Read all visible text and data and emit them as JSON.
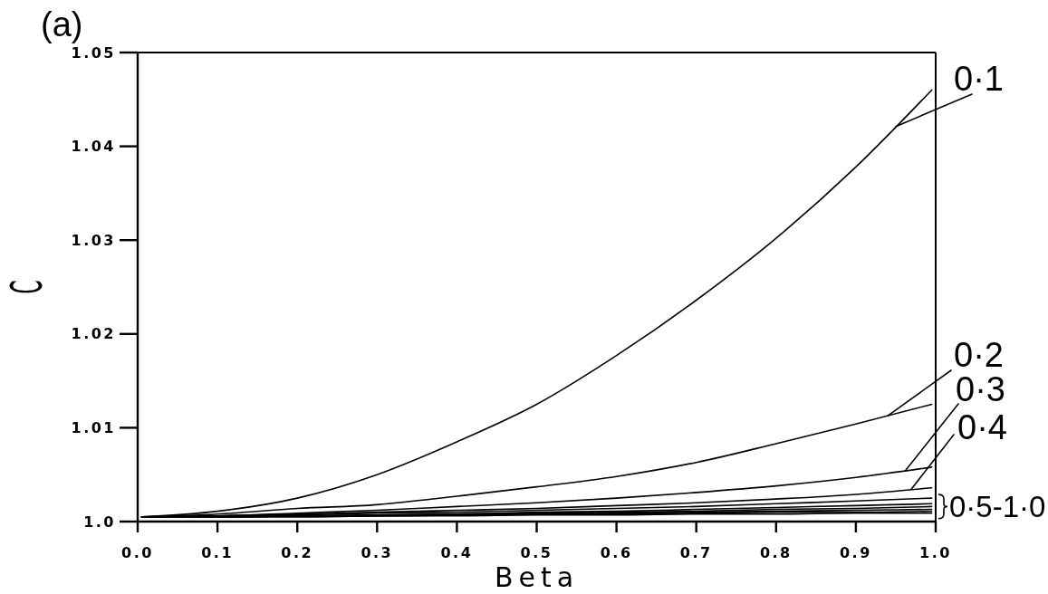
{
  "chart_data": {
    "type": "line",
    "title": "(a)",
    "xlabel": "Beta",
    "ylabel": "C",
    "x": [
      0.005,
      0.1,
      0.2,
      0.3,
      0.4,
      0.5,
      0.6,
      0.7,
      0.8,
      0.9,
      0.995
    ],
    "series": [
      {
        "name": "0·1",
        "color": "#000000",
        "values": [
          1.0005,
          1.0011,
          1.0025,
          1.005,
          1.0085,
          1.0125,
          1.0177,
          1.0236,
          1.0302,
          1.0378,
          1.046
        ]
      },
      {
        "name": "0·2",
        "color": "#000000",
        "values": [
          1.0005,
          1.0008,
          1.0014,
          1.0018,
          1.0027,
          1.0037,
          1.0048,
          1.0063,
          1.0083,
          1.0104,
          1.0125
        ]
      },
      {
        "name": "0·3",
        "color": "#000000",
        "values": [
          1.0005,
          1.0006,
          1.0009,
          1.0012,
          1.0016,
          1.002,
          1.0025,
          1.0031,
          1.0038,
          1.0047,
          1.0058
        ]
      },
      {
        "name": "0·4",
        "color": "#000000",
        "values": [
          1.0005,
          1.0006,
          1.0008,
          1.001,
          1.0012,
          1.0014,
          1.0017,
          1.002,
          1.0024,
          1.0029,
          1.0036
        ]
      },
      {
        "color": "#000000",
        "values": [
          1.0005,
          1.0006,
          1.0007,
          1.0009,
          1.001,
          1.0012,
          1.0014,
          1.0016,
          1.0019,
          1.0022,
          1.0025
        ]
      },
      {
        "color": "#000000",
        "values": [
          1.0005,
          1.0005,
          1.0006,
          1.0007,
          1.0008,
          1.001,
          1.0011,
          1.0013,
          1.0015,
          1.0017,
          1.0019
        ]
      },
      {
        "color": "#000000",
        "values": [
          1.0005,
          1.0005,
          1.0006,
          1.0007,
          1.0008,
          1.0009,
          1.001,
          1.0011,
          1.0013,
          1.0014,
          1.0016
        ]
      },
      {
        "color": "#000000",
        "values": [
          1.0005,
          1.0005,
          1.0006,
          1.0006,
          1.0007,
          1.0008,
          1.0009,
          1.001,
          1.0011,
          1.0012,
          1.0013
        ]
      },
      {
        "color": "#000000",
        "values": [
          1.0005,
          1.0005,
          1.0005,
          1.0006,
          1.0007,
          1.0008,
          1.0008,
          1.0009,
          1.001,
          1.001,
          1.0011
        ]
      },
      {
        "color": "#000000",
        "values": [
          1.0005,
          1.0005,
          1.0005,
          1.0006,
          1.0006,
          1.0007,
          1.0007,
          1.0008,
          1.0008,
          1.0009,
          1.0009
        ]
      }
    ],
    "annotations": [
      "0·5-1·0"
    ],
    "xlim": [
      0,
      1
    ],
    "ylim": [
      1,
      1.05
    ],
    "xticks": [
      {
        "value": 0,
        "label": "0.0"
      },
      0.1,
      0.2,
      0.3,
      0.4,
      0.5,
      0.6,
      0.7,
      0.8,
      0.9,
      {
        "value": 1,
        "label": "1.0"
      }
    ],
    "yticks": [
      {
        "value": 1,
        "label": "1.0"
      },
      1.01,
      1.02,
      1.03,
      1.04,
      1.05
    ]
  }
}
